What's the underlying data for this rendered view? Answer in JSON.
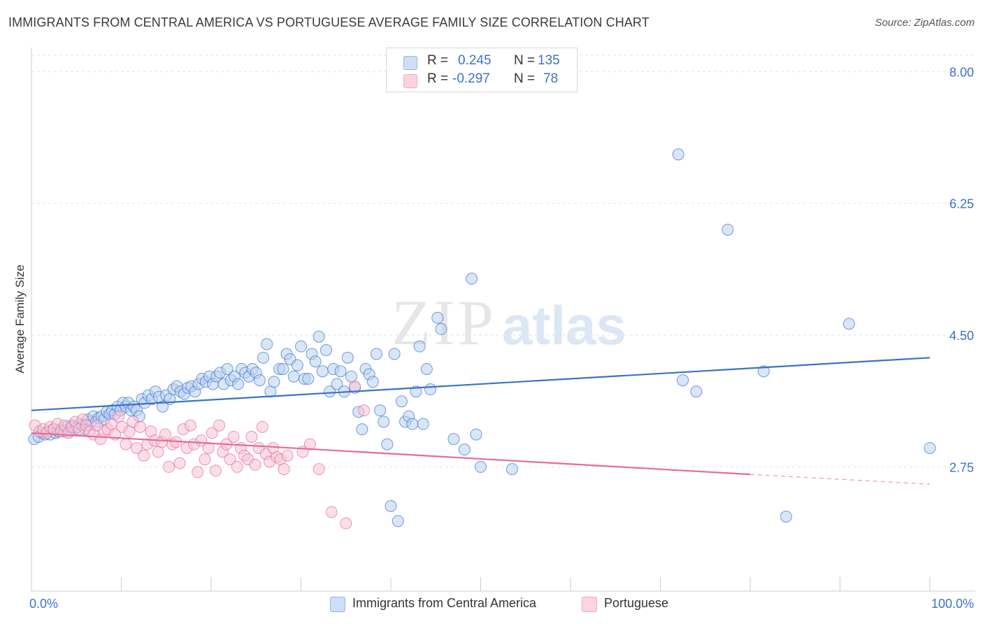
{
  "title": "IMMIGRANTS FROM CENTRAL AMERICA VS PORTUGUESE AVERAGE FAMILY SIZE CORRELATION CHART",
  "source": "Source: ZipAtlas.com",
  "watermark": {
    "zip": "ZIP",
    "atlas": "atlas"
  },
  "stats": [
    {
      "r_label": "R =",
      "r_value": "0.245",
      "n_label": "N =",
      "n_value": "135",
      "color": "#8fb6ea"
    },
    {
      "r_label": "R =",
      "r_value": "-0.297",
      "n_label": "N =",
      "n_value": "78",
      "color": "#f2a9c2"
    }
  ],
  "legend": [
    {
      "label": "Immigrants from Central America",
      "color": "#8fb6ea"
    },
    {
      "label": "Portuguese",
      "color": "#f2a9c2"
    }
  ],
  "chart_data": {
    "type": "scatter",
    "title": "IMMIGRANTS FROM CENTRAL AMERICA VS PORTUGUESE AVERAGE FAMILY SIZE CORRELATION CHART",
    "xlabel": "",
    "ylabel": "Average Family Size",
    "xlim": [
      0,
      100
    ],
    "ylim": [
      1.1,
      8.3
    ],
    "y_ticks": [
      2.75,
      4.5,
      6.25,
      8.0
    ],
    "y_tick_labels": [
      "2.75",
      "4.50",
      "6.25",
      "8.00"
    ],
    "x_tick_labels": [
      "0.0%",
      "100.0%"
    ],
    "grid": "horizontal-dashed",
    "legend_position": "bottom-center",
    "series": [
      {
        "name": "Immigrants from Central America",
        "color": "#3a73c8",
        "fill": "#b9d2f2",
        "trend": {
          "x": [
            0,
            100
          ],
          "y": [
            3.5,
            4.2
          ]
        },
        "points": [
          [
            0.3,
            3.12
          ],
          [
            0.8,
            3.15
          ],
          [
            1.2,
            3.2
          ],
          [
            1.5,
            3.18
          ],
          [
            1.8,
            3.22
          ],
          [
            2.1,
            3.18
          ],
          [
            2.4,
            3.25
          ],
          [
            2.7,
            3.2
          ],
          [
            3.0,
            3.22
          ],
          [
            3.3,
            3.25
          ],
          [
            3.6,
            3.22
          ],
          [
            3.9,
            3.28
          ],
          [
            4.2,
            3.22
          ],
          [
            4.5,
            3.3
          ],
          [
            4.8,
            3.25
          ],
          [
            5.1,
            3.28
          ],
          [
            5.4,
            3.32
          ],
          [
            5.7,
            3.3
          ],
          [
            6.0,
            3.25
          ],
          [
            6.3,
            3.38
          ],
          [
            6.6,
            3.35
          ],
          [
            6.9,
            3.42
          ],
          [
            7.2,
            3.35
          ],
          [
            7.5,
            3.4
          ],
          [
            7.8,
            3.42
          ],
          [
            8.1,
            3.38
          ],
          [
            8.4,
            3.48
          ],
          [
            8.7,
            3.45
          ],
          [
            9.0,
            3.5
          ],
          [
            9.3,
            3.45
          ],
          [
            9.6,
            3.55
          ],
          [
            9.9,
            3.5
          ],
          [
            10.2,
            3.6
          ],
          [
            10.5,
            3.55
          ],
          [
            10.8,
            3.6
          ],
          [
            11.1,
            3.5
          ],
          [
            11.4,
            3.55
          ],
          [
            11.7,
            3.5
          ],
          [
            12.0,
            3.42
          ],
          [
            12.3,
            3.65
          ],
          [
            12.6,
            3.6
          ],
          [
            13.0,
            3.7
          ],
          [
            13.4,
            3.65
          ],
          [
            13.8,
            3.75
          ],
          [
            14.2,
            3.68
          ],
          [
            14.6,
            3.55
          ],
          [
            15.0,
            3.7
          ],
          [
            15.4,
            3.65
          ],
          [
            15.8,
            3.78
          ],
          [
            16.2,
            3.82
          ],
          [
            16.6,
            3.75
          ],
          [
            17.0,
            3.72
          ],
          [
            17.4,
            3.8
          ],
          [
            17.8,
            3.82
          ],
          [
            18.2,
            3.75
          ],
          [
            18.6,
            3.85
          ],
          [
            19.0,
            3.92
          ],
          [
            19.4,
            3.88
          ],
          [
            19.8,
            3.95
          ],
          [
            20.2,
            3.85
          ],
          [
            20.6,
            3.95
          ],
          [
            21.0,
            4.0
          ],
          [
            21.4,
            3.85
          ],
          [
            21.8,
            4.05
          ],
          [
            22.2,
            3.9
          ],
          [
            22.6,
            3.95
          ],
          [
            23.0,
            3.85
          ],
          [
            23.4,
            4.05
          ],
          [
            23.8,
            4.0
          ],
          [
            24.2,
            3.95
          ],
          [
            24.6,
            4.05
          ],
          [
            25.0,
            4.0
          ],
          [
            25.4,
            3.9
          ],
          [
            25.8,
            4.2
          ],
          [
            26.2,
            4.38
          ],
          [
            26.6,
            3.75
          ],
          [
            27.0,
            3.88
          ],
          [
            27.6,
            4.05
          ],
          [
            28.0,
            4.05
          ],
          [
            28.4,
            4.25
          ],
          [
            28.8,
            4.18
          ],
          [
            29.2,
            3.95
          ],
          [
            29.6,
            4.1
          ],
          [
            30.0,
            4.35
          ],
          [
            30.4,
            3.92
          ],
          [
            30.8,
            3.92
          ],
          [
            31.2,
            4.25
          ],
          [
            31.6,
            4.15
          ],
          [
            32.0,
            4.48
          ],
          [
            32.4,
            4.02
          ],
          [
            32.8,
            4.3
          ],
          [
            33.2,
            3.75
          ],
          [
            33.6,
            4.05
          ],
          [
            34.0,
            3.85
          ],
          [
            34.4,
            4.02
          ],
          [
            34.8,
            3.75
          ],
          [
            35.2,
            4.2
          ],
          [
            35.6,
            3.95
          ],
          [
            36.0,
            3.8
          ],
          [
            36.4,
            3.48
          ],
          [
            36.8,
            3.25
          ],
          [
            37.2,
            4.05
          ],
          [
            37.6,
            3.98
          ],
          [
            38.0,
            3.88
          ],
          [
            38.4,
            4.25
          ],
          [
            38.8,
            3.5
          ],
          [
            39.2,
            3.35
          ],
          [
            39.6,
            3.05
          ],
          [
            40.0,
            2.23
          ],
          [
            40.4,
            4.25
          ],
          [
            40.8,
            2.03
          ],
          [
            41.2,
            3.62
          ],
          [
            41.6,
            3.35
          ],
          [
            42.0,
            3.42
          ],
          [
            42.4,
            3.32
          ],
          [
            42.8,
            3.75
          ],
          [
            43.2,
            4.35
          ],
          [
            43.6,
            3.32
          ],
          [
            44.0,
            4.05
          ],
          [
            44.4,
            3.78
          ],
          [
            45.2,
            4.73
          ],
          [
            45.6,
            4.58
          ],
          [
            47.0,
            3.12
          ],
          [
            48.2,
            2.98
          ],
          [
            49.0,
            5.25
          ],
          [
            49.5,
            3.18
          ],
          [
            50.0,
            2.75
          ],
          [
            53.5,
            2.72
          ],
          [
            72.0,
            6.9
          ],
          [
            77.5,
            5.9
          ],
          [
            91.0,
            4.65
          ],
          [
            100.0,
            3.0
          ],
          [
            81.5,
            4.02
          ],
          [
            74.0,
            3.75
          ],
          [
            72.5,
            3.9
          ],
          [
            84.0,
            2.09
          ]
        ]
      },
      {
        "name": "Portuguese",
        "color": "#e76a97",
        "fill": "#f7c4d5",
        "trend": {
          "x": [
            0,
            80
          ],
          "y": [
            3.2,
            2.65
          ]
        },
        "trend_dashed": {
          "x": [
            80,
            100
          ],
          "y": [
            2.65,
            2.52
          ]
        },
        "points": [
          [
            0.4,
            3.3
          ],
          [
            0.9,
            3.22
          ],
          [
            1.3,
            3.25
          ],
          [
            1.7,
            3.2
          ],
          [
            2.1,
            3.28
          ],
          [
            2.5,
            3.25
          ],
          [
            2.9,
            3.32
          ],
          [
            3.3,
            3.22
          ],
          [
            3.7,
            3.3
          ],
          [
            4.1,
            3.2
          ],
          [
            4.5,
            3.28
          ],
          [
            4.9,
            3.35
          ],
          [
            5.3,
            3.25
          ],
          [
            5.7,
            3.38
          ],
          [
            6.1,
            3.3
          ],
          [
            6.5,
            3.22
          ],
          [
            6.9,
            3.18
          ],
          [
            7.3,
            3.3
          ],
          [
            7.7,
            3.12
          ],
          [
            8.1,
            3.22
          ],
          [
            8.5,
            3.25
          ],
          [
            8.9,
            3.32
          ],
          [
            9.3,
            3.18
          ],
          [
            9.7,
            3.42
          ],
          [
            10.1,
            3.28
          ],
          [
            10.5,
            3.05
          ],
          [
            10.9,
            3.22
          ],
          [
            11.3,
            3.35
          ],
          [
            11.7,
            3.0
          ],
          [
            12.1,
            3.28
          ],
          [
            12.5,
            2.9
          ],
          [
            12.9,
            3.05
          ],
          [
            13.3,
            3.22
          ],
          [
            13.7,
            3.1
          ],
          [
            14.1,
            2.95
          ],
          [
            14.5,
            3.08
          ],
          [
            14.9,
            3.18
          ],
          [
            15.3,
            2.75
          ],
          [
            15.7,
            3.05
          ],
          [
            16.1,
            3.08
          ],
          [
            16.5,
            2.8
          ],
          [
            16.9,
            3.25
          ],
          [
            17.3,
            3.0
          ],
          [
            17.7,
            3.3
          ],
          [
            18.1,
            3.05
          ],
          [
            18.5,
            2.68
          ],
          [
            18.9,
            3.1
          ],
          [
            19.3,
            2.85
          ],
          [
            19.7,
            3.0
          ],
          [
            20.1,
            3.2
          ],
          [
            20.5,
            2.7
          ],
          [
            20.9,
            3.3
          ],
          [
            21.3,
            2.95
          ],
          [
            21.7,
            3.05
          ],
          [
            22.1,
            2.85
          ],
          [
            22.5,
            3.15
          ],
          [
            22.9,
            2.75
          ],
          [
            23.3,
            3.0
          ],
          [
            23.7,
            2.9
          ],
          [
            24.1,
            2.85
          ],
          [
            24.5,
            3.15
          ],
          [
            24.9,
            2.78
          ],
          [
            25.3,
            3.0
          ],
          [
            25.7,
            3.28
          ],
          [
            26.1,
            2.92
          ],
          [
            26.5,
            2.82
          ],
          [
            26.9,
            3.0
          ],
          [
            27.3,
            2.88
          ],
          [
            27.7,
            2.85
          ],
          [
            28.1,
            2.72
          ],
          [
            28.5,
            2.9
          ],
          [
            30.2,
            2.95
          ],
          [
            31.0,
            3.05
          ],
          [
            32.0,
            2.72
          ],
          [
            33.4,
            2.15
          ],
          [
            35.0,
            2.0
          ],
          [
            36.0,
            3.82
          ],
          [
            37.0,
            3.5
          ]
        ]
      }
    ]
  }
}
